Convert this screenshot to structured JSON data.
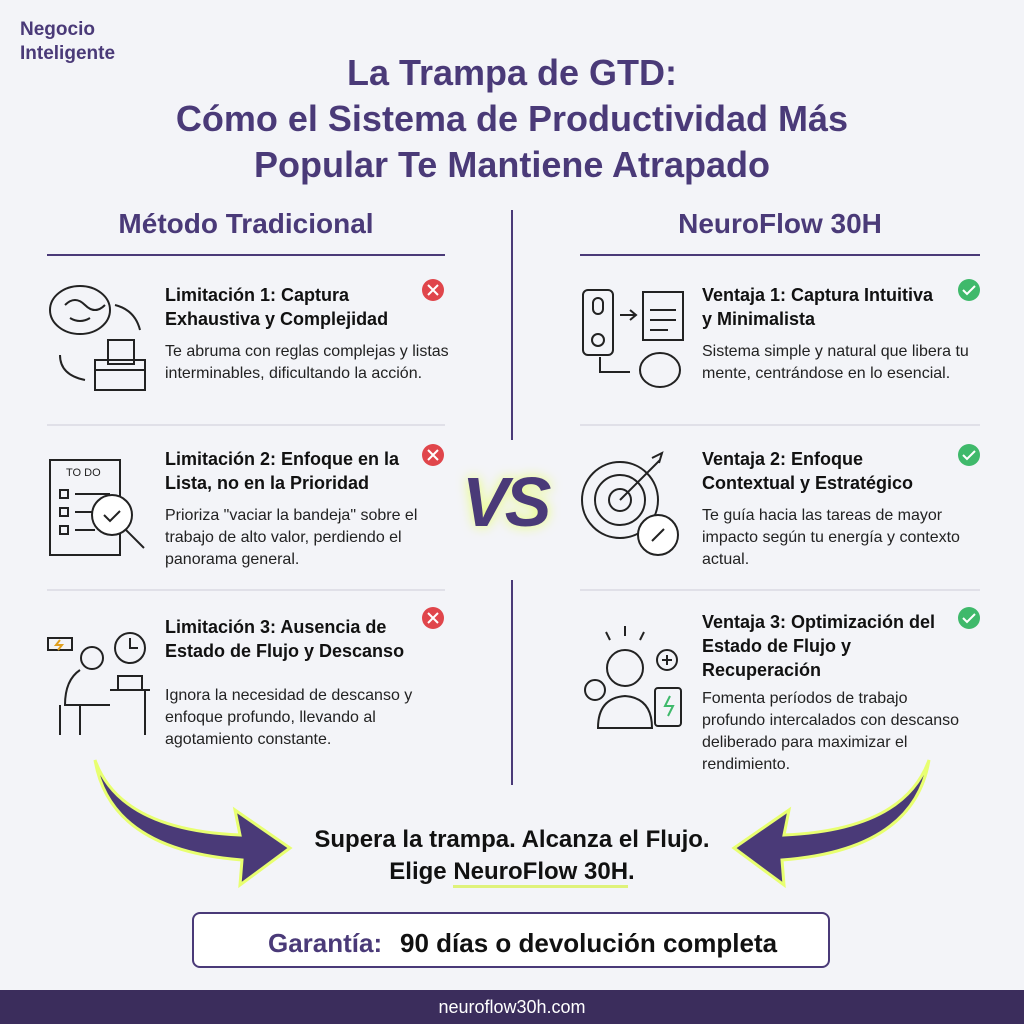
{
  "brand": "Negocio Inteligente",
  "title": [
    "La Trampa de GTD:",
    "Cómo el Sistema de Productividad Más",
    "Popular Te Mantiene Atrapado"
  ],
  "left": {
    "heading": "Método Tradicional",
    "items": [
      {
        "title": "Limitación 1: Captura Exhaustiva y Complejidad",
        "text": "Te abruma con reglas complejas y listas interminables, dificultando la acción."
      },
      {
        "title": "Limitación 2: Enfoque en la Lista, no en la Prioridad",
        "text": "Prioriza \"vaciar la bandeja\" sobre el trabajo de alto valor, perdiendo el panorama general."
      },
      {
        "title": "Limitación 3: Ausencia de Estado de Flujo y Descanso",
        "text": "Ignora la necesidad de descanso y enfoque profundo, llevando al agotamiento constante."
      }
    ]
  },
  "right": {
    "heading": "NeuroFlow 30H",
    "items": [
      {
        "title": "Ventaja 1: Captura Intuitiva y Minimalista",
        "text": "Sistema simple y natural que libera tu mente, centrándose en lo esencial."
      },
      {
        "title": "Ventaja 2: Enfoque Contextual y Estratégico",
        "text": "Te guía hacia las tareas de mayor impacto según tu energía y contexto actual."
      },
      {
        "title": "Ventaja 3: Optimización del Estado de Flujo y Recuperación",
        "text": "Fomenta períodos de trabajo profundo intercalados con descanso deliberado para maximizar el rendimiento."
      }
    ]
  },
  "vs": "VS",
  "icon_labels": {
    "todo": "TO DO"
  },
  "cta": {
    "line1": "Supera la trampa. Alcanza el Flujo.",
    "line2_prefix": "Elige",
    "line2_brand": "NeuroFlow 30H",
    "line2_suffix": "."
  },
  "guarantee": {
    "label": "Garantía:",
    "text": "90 días o devolución completa"
  },
  "footer": "neuroflow30h.com"
}
